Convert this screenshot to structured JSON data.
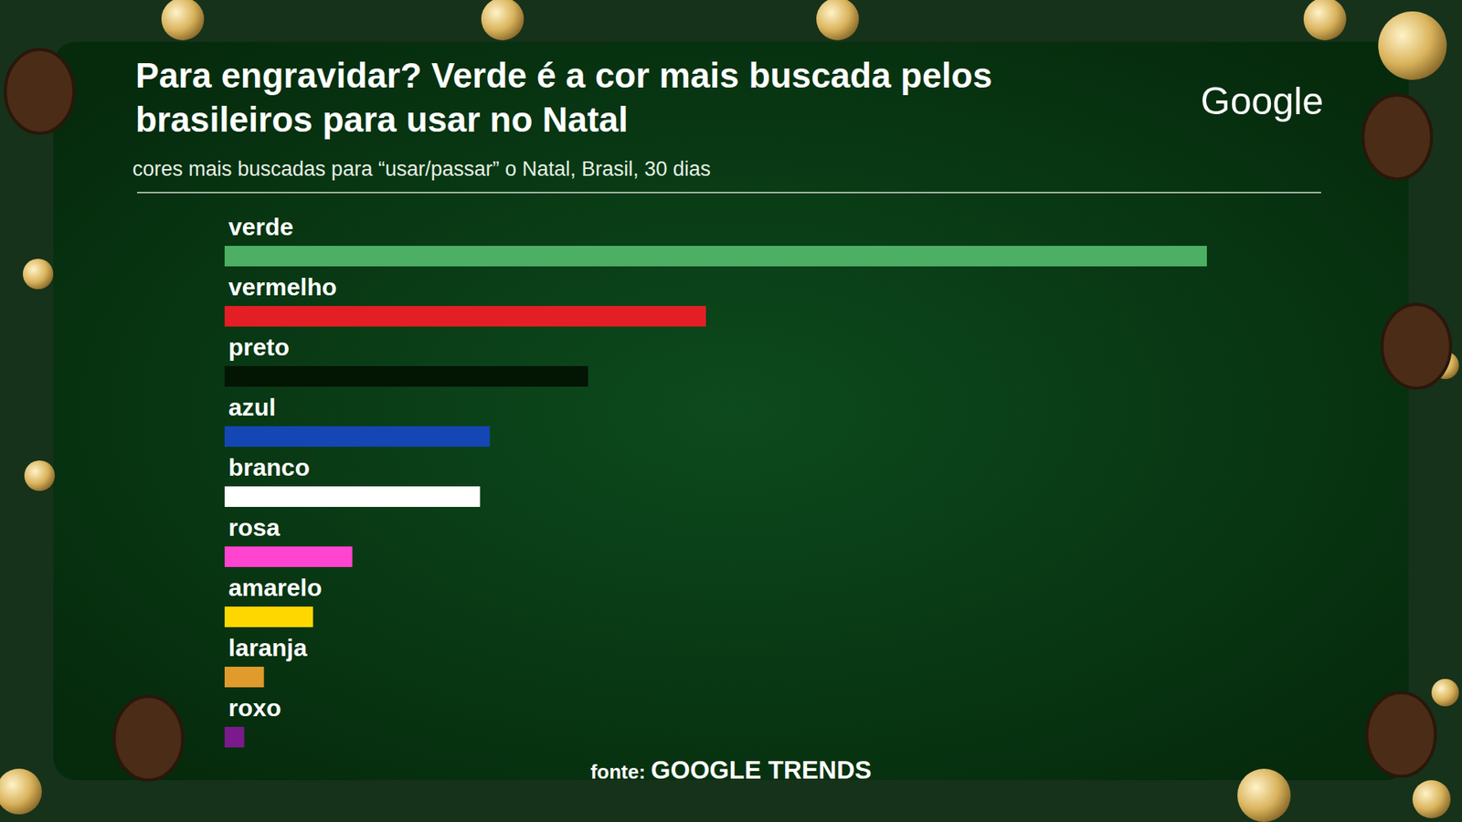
{
  "chart_data": {
    "type": "bar",
    "orientation": "horizontal",
    "title": "Para engravidar? Verde é a cor mais buscada pelos brasileiros para usar no Natal",
    "subtitle": "cores mais buscadas para “usar/passar” o Natal, Brasil, 30 dias",
    "logo": "Google",
    "source_label": "fonte:",
    "source": "GOOGLE TRENDS",
    "categories": [
      "verde",
      "vermelho",
      "preto",
      "azul",
      "branco",
      "rosa",
      "amarelo",
      "laranja",
      "roxo"
    ],
    "values": [
      100,
      49,
      37,
      27,
      26,
      13,
      9,
      4,
      2
    ],
    "colors": [
      "#4caf64",
      "#e31e24",
      "#031503",
      "#1446b4",
      "#ffffff",
      "#ff44d0",
      "#ffd700",
      "#e09b2d",
      "#7a1a8c"
    ],
    "xlim": [
      0,
      100
    ],
    "tick_labels": false,
    "grid": false,
    "data_labels": false
  }
}
